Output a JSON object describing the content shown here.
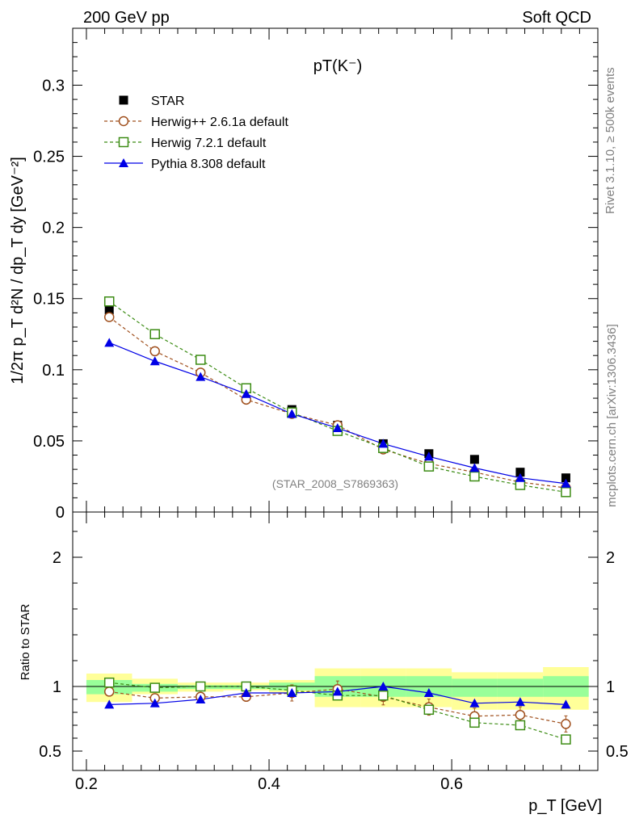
{
  "header": {
    "left": "200 GeV pp",
    "right": "Soft QCD"
  },
  "side_text": {
    "top": "Rivet 3.1.10, ≥ 500k events",
    "bottom": "mcplots.cern.ch [arXiv:1306.3436]"
  },
  "colors": {
    "star": "#000000",
    "herwig_pp": "#a0501e",
    "herwig7": "#3c8c14",
    "pythia": "#0000e6",
    "band_yellow": "#ffff99",
    "band_green": "#99ff99"
  },
  "chart_data": [
    {
      "type": "line",
      "title": "pT(K⁻)",
      "ylabel": "1/2π p_T  d²N / dp_T dy  [GeV⁻²]",
      "ylim": [
        0,
        0.34
      ],
      "yticks": [
        "0",
        "0.05",
        "0.1",
        "0.15",
        "0.2",
        "0.25",
        "0.3"
      ],
      "watermark": "(STAR_2008_S7869363)",
      "x": [
        0.225,
        0.275,
        0.325,
        0.375,
        0.425,
        0.475,
        0.525,
        0.575,
        0.625,
        0.675,
        0.725
      ],
      "series": [
        {
          "name": "STAR",
          "values": [
            0.142,
            0.125,
            0.107,
            0.087,
            0.072,
            0.061,
            0.048,
            0.041,
            0.037,
            0.028,
            0.024
          ]
        },
        {
          "name": "Herwig++ 2.6.1a default",
          "values": [
            0.137,
            0.113,
            0.098,
            0.079,
            0.069,
            0.061,
            0.044,
            0.034,
            0.028,
            0.021,
            0.017
          ]
        },
        {
          "name": "Herwig 7.2.1 default",
          "values": [
            0.148,
            0.125,
            0.107,
            0.087,
            0.07,
            0.057,
            0.045,
            0.032,
            0.025,
            0.019,
            0.014
          ]
        },
        {
          "name": "Pythia 8.308 default",
          "values": [
            0.119,
            0.106,
            0.095,
            0.083,
            0.069,
            0.059,
            0.048,
            0.039,
            0.031,
            0.024,
            0.02
          ]
        }
      ]
    },
    {
      "type": "line",
      "ylabel": "Ratio to STAR",
      "xlabel": "p_T [GeV]",
      "xlim": [
        0.185,
        0.76
      ],
      "ylim": [
        0.35,
        2.35
      ],
      "xticks": [
        "0.2",
        "0.4",
        "0.6"
      ],
      "yticks": [
        "0.5",
        "1",
        "2"
      ],
      "bands": {
        "edges": [
          0.2,
          0.25,
          0.3,
          0.35,
          0.4,
          0.45,
          0.5,
          0.55,
          0.6,
          0.65,
          0.7,
          0.75
        ],
        "yellow_lo": [
          0.88,
          0.94,
          0.96,
          0.97,
          0.95,
          0.84,
          0.84,
          0.84,
          0.82,
          0.82,
          0.82
        ],
        "yellow_hi": [
          1.1,
          1.06,
          1.03,
          1.03,
          1.05,
          1.14,
          1.14,
          1.14,
          1.11,
          1.11,
          1.15
        ],
        "green_lo": [
          0.94,
          0.96,
          0.98,
          0.98,
          0.97,
          0.92,
          0.92,
          0.92,
          0.92,
          0.92,
          0.92
        ],
        "green_hi": [
          1.05,
          1.02,
          1.01,
          1.01,
          1.03,
          1.08,
          1.08,
          1.08,
          1.06,
          1.06,
          1.08
        ]
      },
      "x": [
        0.225,
        0.275,
        0.325,
        0.375,
        0.425,
        0.475,
        0.525,
        0.575,
        0.625,
        0.675,
        0.725
      ],
      "series": [
        {
          "name": "Herwig++ 2.6.1a default",
          "values": [
            0.96,
            0.91,
            0.92,
            0.92,
            0.95,
            0.98,
            0.92,
            0.84,
            0.77,
            0.78,
            0.71
          ]
        },
        {
          "name": "Herwig 7.2.1 default",
          "values": [
            1.03,
            0.99,
            1.0,
            1.0,
            0.97,
            0.93,
            0.93,
            0.82,
            0.72,
            0.7,
            0.59
          ]
        },
        {
          "name": "Pythia 8.308 default",
          "values": [
            0.86,
            0.87,
            0.9,
            0.95,
            0.95,
            0.96,
            1.0,
            0.95,
            0.87,
            0.88,
            0.86
          ]
        }
      ]
    }
  ]
}
